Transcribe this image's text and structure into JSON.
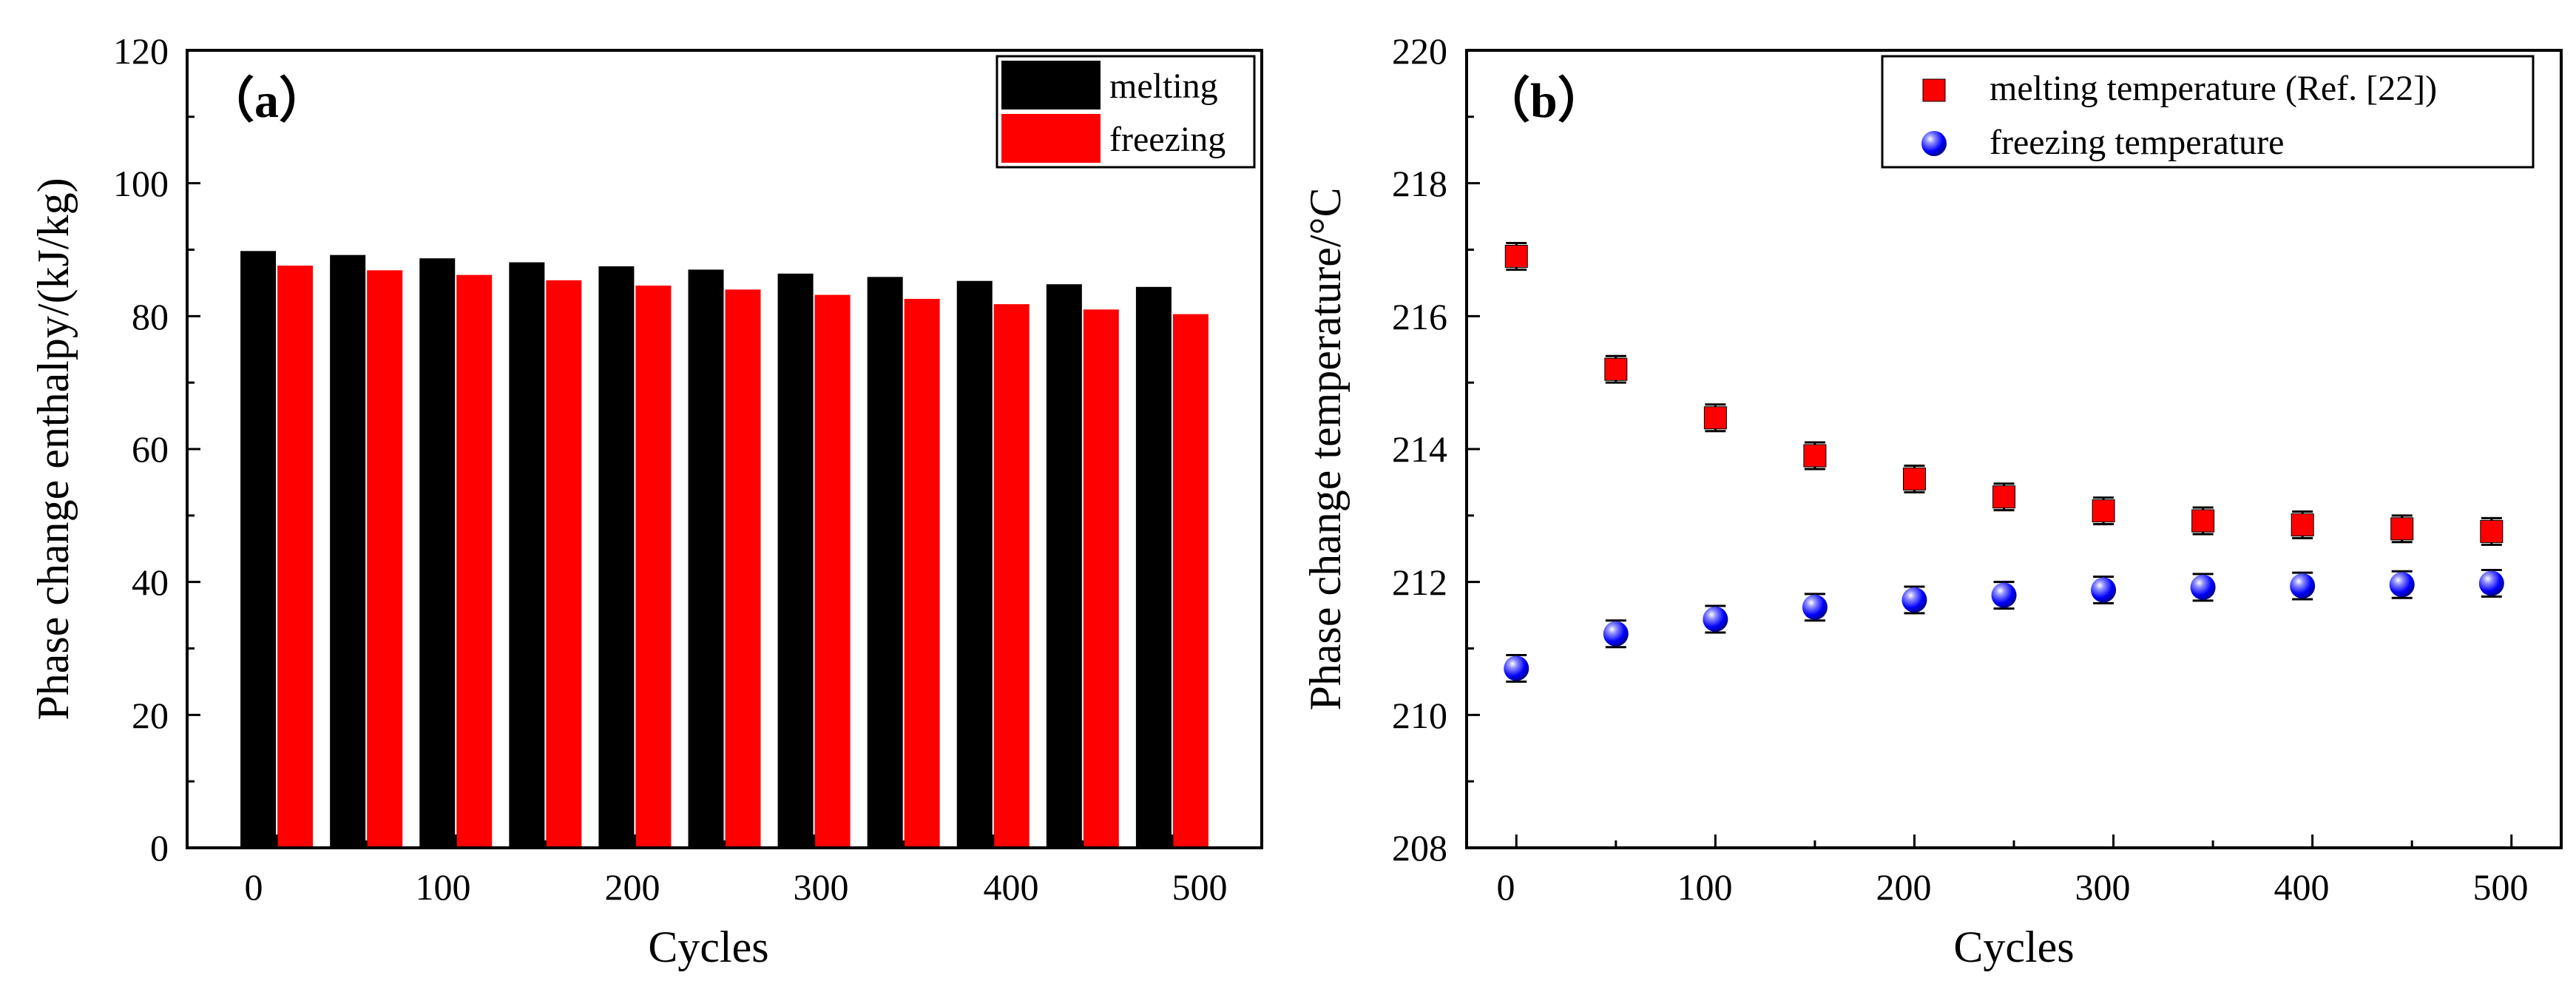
{
  "chart_data": [
    {
      "panel_label": "（a）",
      "type": "bar",
      "xlabel": "Cycles",
      "ylabel": "Phase change enthalpy/(kJ/kg)",
      "xlim": [
        -50,
        550
      ],
      "ylim": [
        0,
        120
      ],
      "x_ticks": [
        0,
        100,
        200,
        300,
        400,
        500
      ],
      "y_ticks": [
        0,
        20,
        40,
        60,
        80,
        100,
        120
      ],
      "x": [
        0,
        50,
        100,
        150,
        200,
        250,
        300,
        350,
        400,
        450,
        500
      ],
      "series": [
        {
          "name": "melting",
          "color": "#000000",
          "values": [
            89.8,
            89.2,
            88.7,
            88.1,
            87.5,
            87.0,
            86.4,
            85.9,
            85.3,
            84.8,
            84.4
          ]
        },
        {
          "name": "freezing",
          "color": "#ff0000",
          "values": [
            87.6,
            86.9,
            86.2,
            85.4,
            84.6,
            84.0,
            83.2,
            82.6,
            81.8,
            81.0,
            80.3
          ]
        }
      ],
      "legend_position": "top-right",
      "grid": false
    },
    {
      "panel_label": "（b）",
      "type": "scatter",
      "xlabel": "Cycles",
      "ylabel": "Phase change temperature/°C",
      "xlim": [
        -25,
        525
      ],
      "ylim": [
        208,
        220
      ],
      "x_ticks": [
        0,
        100,
        200,
        300,
        400,
        500
      ],
      "y_ticks": [
        208,
        210,
        212,
        214,
        216,
        218,
        220
      ],
      "series": [
        {
          "name": "melting temperature (Ref. [22])",
          "marker": "square",
          "color": "#ff0000",
          "x": [
            0,
            50,
            100,
            150,
            200,
            245,
            295,
            345,
            395,
            445,
            490
          ],
          "y": [
            216.9,
            215.2,
            214.47,
            213.9,
            213.55,
            213.28,
            213.07,
            212.92,
            212.86,
            212.8,
            212.76
          ],
          "error": 0.2
        },
        {
          "name": "freezing temperature",
          "marker": "sphere",
          "color": "#0000ff",
          "x": [
            0,
            50,
            100,
            150,
            200,
            245,
            295,
            345,
            395,
            445,
            490
          ],
          "y": [
            210.7,
            211.22,
            211.44,
            211.62,
            211.73,
            211.8,
            211.88,
            211.92,
            211.94,
            211.96,
            211.98
          ],
          "error": 0.2
        }
      ],
      "legend_position": "top-right",
      "grid": false
    }
  ]
}
